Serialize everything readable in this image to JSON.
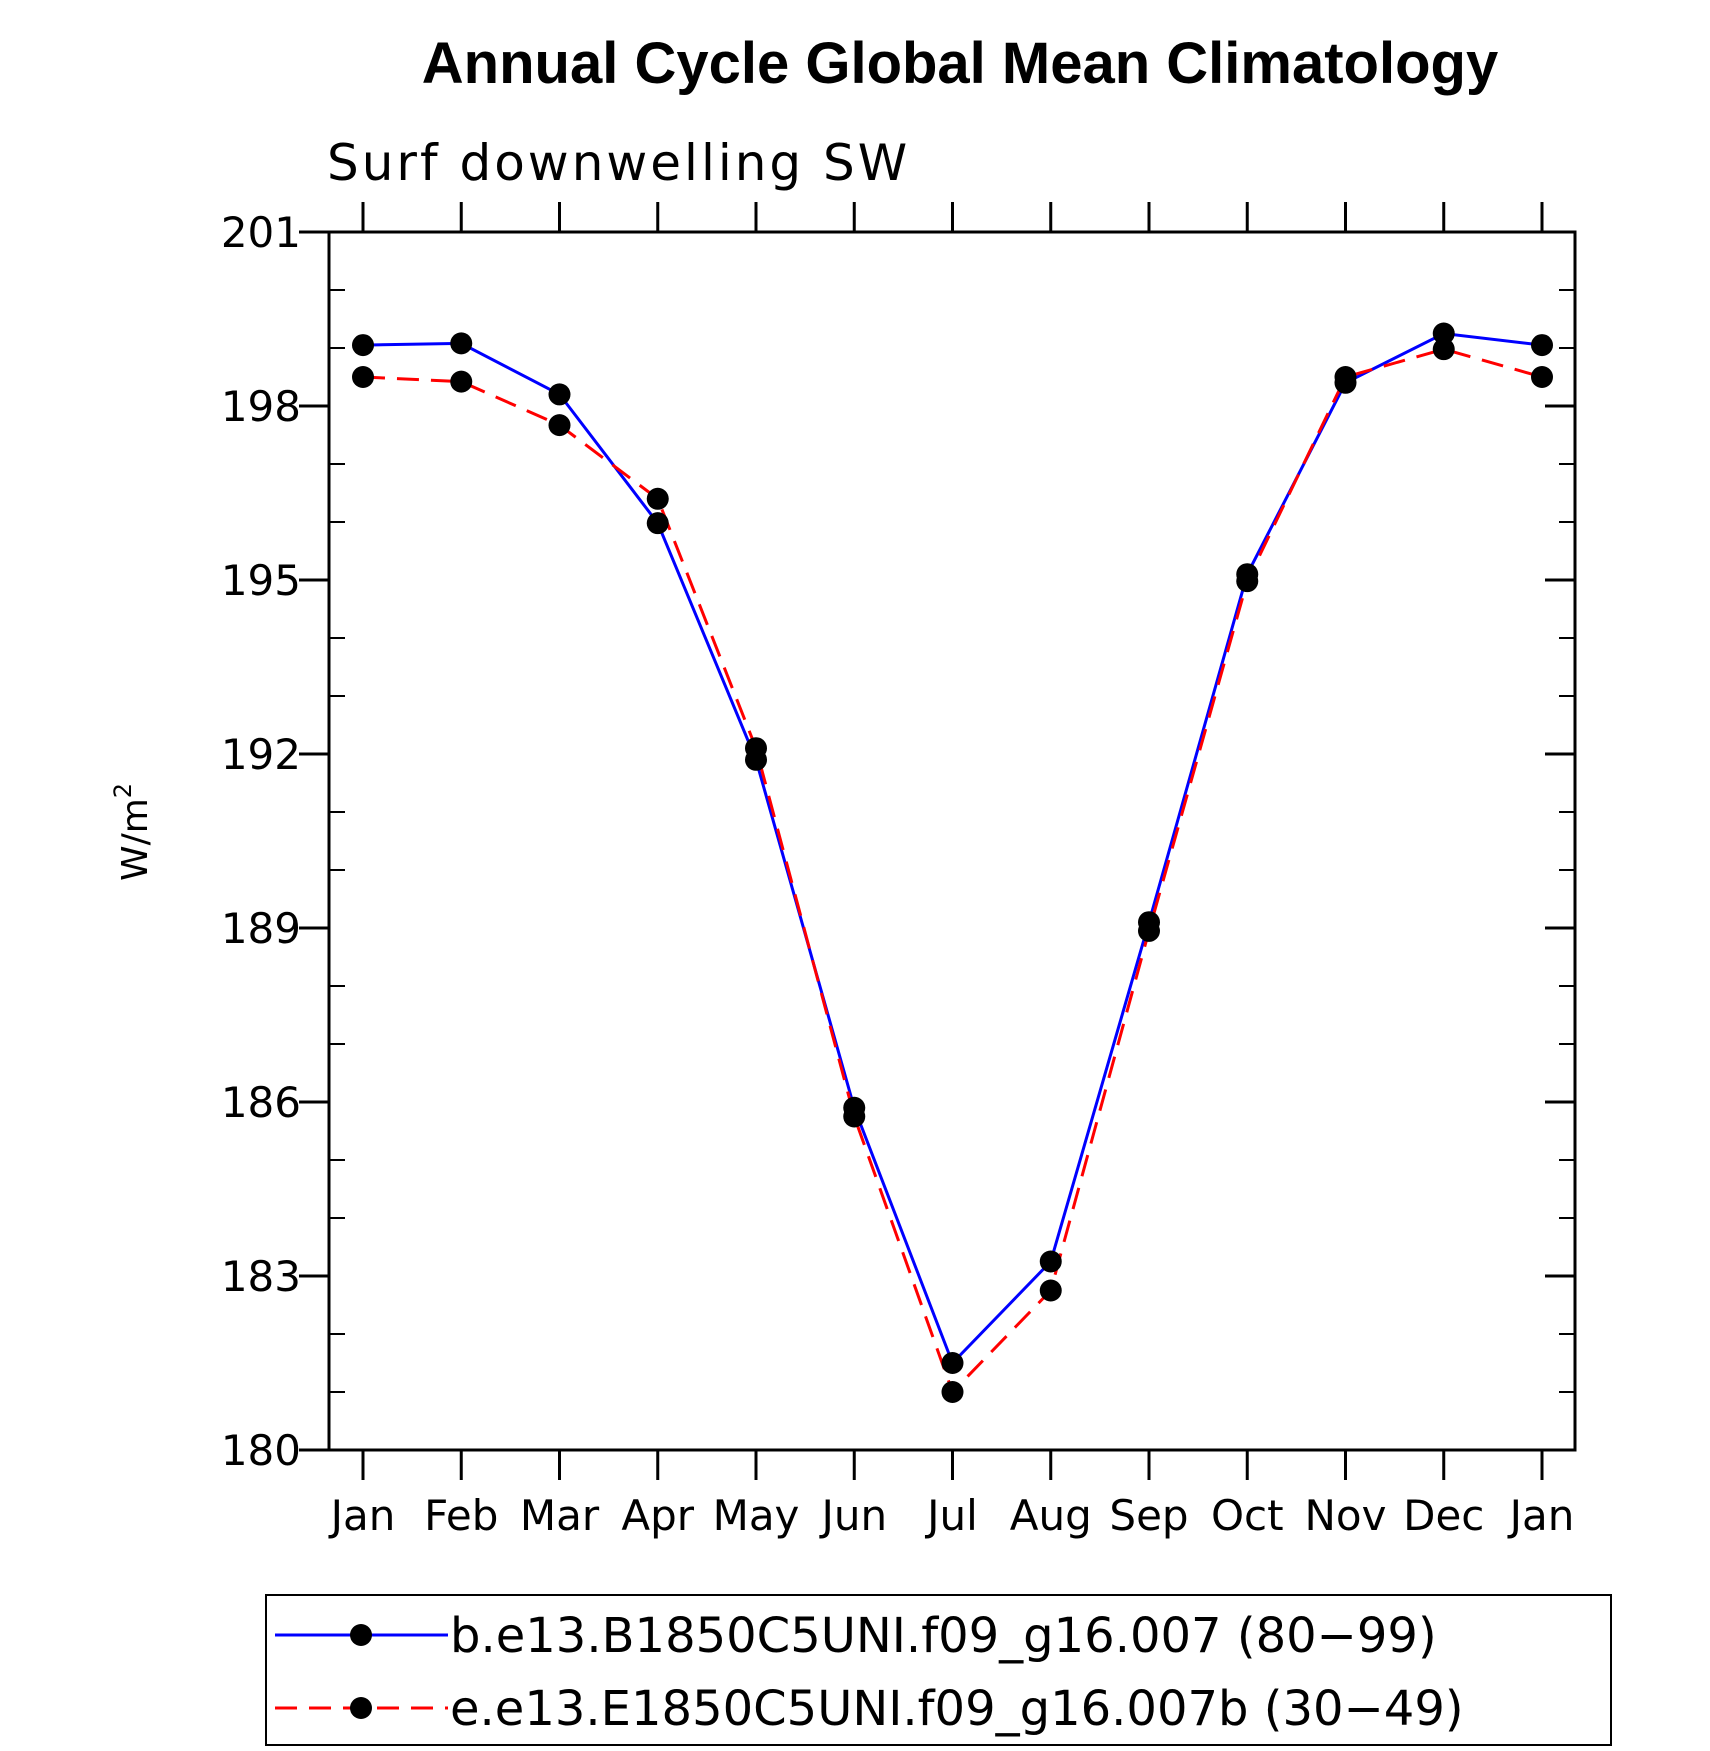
{
  "chart_data": {
    "type": "line",
    "title": "Annual Cycle Global Mean Climatology",
    "subtitle": "Surf downwelling SW",
    "xlabel": "",
    "ylabel": "W/m",
    "ylabel_superscript": "2",
    "categories": [
      "Jan",
      "Feb",
      "Mar",
      "Apr",
      "May",
      "Jun",
      "Jul",
      "Aug",
      "Sep",
      "Oct",
      "Nov",
      "Dec",
      "Jan"
    ],
    "ylim": [
      180,
      201
    ],
    "yticks": [
      180,
      183,
      186,
      189,
      192,
      195,
      198,
      201
    ],
    "series": [
      {
        "name": "b.e13.B1850C5UNI.f09_g16.007 (80−99)",
        "color": "#0000ff",
        "dash": "solid",
        "marker": "circle",
        "values": [
          199.05,
          199.08,
          198.2,
          195.98,
          191.9,
          185.9,
          181.5,
          183.25,
          189.1,
          195.1,
          198.4,
          199.25,
          199.05
        ]
      },
      {
        "name": "e.e13.E1850C5UNI.f09_g16.007b (30−49)",
        "color": "#ff0000",
        "dash": "dashed",
        "marker": "circle",
        "values": [
          198.5,
          198.42,
          197.67,
          196.4,
          192.1,
          185.75,
          181.0,
          182.75,
          188.95,
          194.98,
          198.5,
          198.98,
          198.5
        ]
      }
    ]
  }
}
